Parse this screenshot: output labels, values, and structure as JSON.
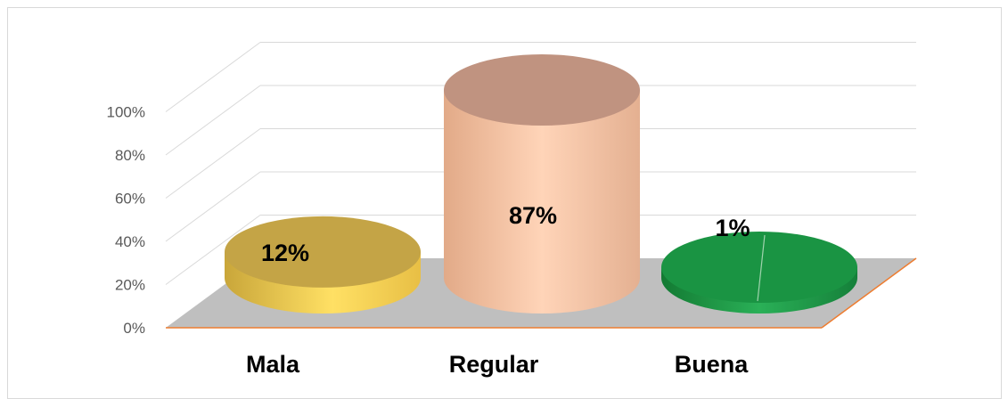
{
  "chart_data": {
    "type": "bar",
    "bar_shape": "cylinder",
    "three_d": true,
    "categories": [
      "Mala",
      "Regular",
      "Buena"
    ],
    "values": [
      12,
      87,
      1
    ],
    "data_labels": [
      "12%",
      "87%",
      "1%"
    ],
    "colors": [
      "#f2cf58",
      "#f4c3a4",
      "#1f9e47"
    ],
    "yticks": [
      "0%",
      "20%",
      "40%",
      "60%",
      "80%",
      "100%"
    ],
    "ylim": [
      0,
      100
    ],
    "grid": true,
    "floor_color": "#bfbfbf",
    "axis_color": "#ed7d31",
    "legend": "none"
  }
}
